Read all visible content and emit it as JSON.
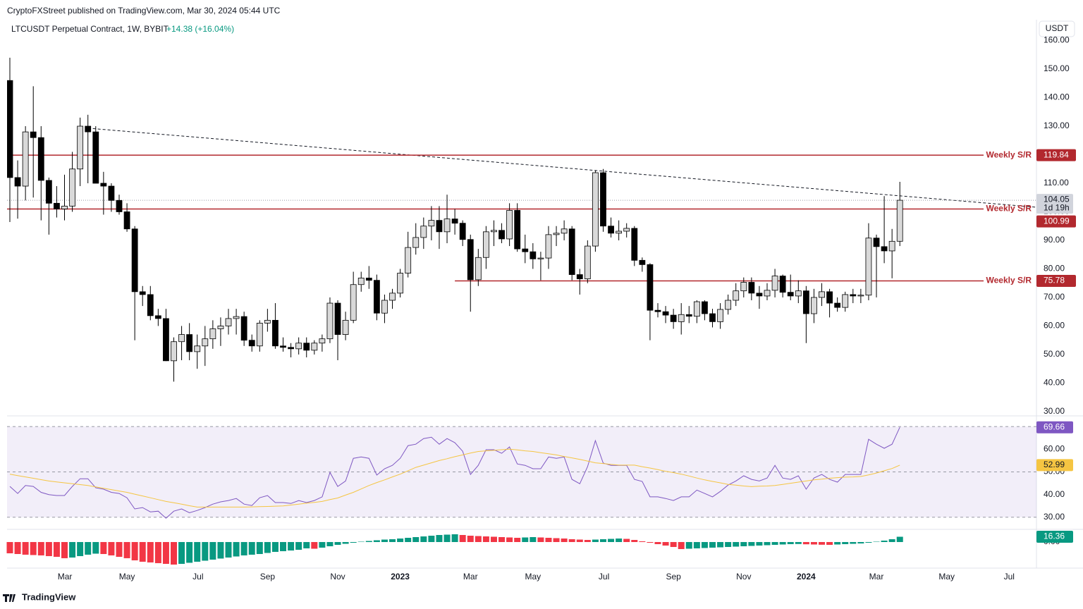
{
  "header": {
    "publisher": "CryptoFXStreet published on TradingView.com, Mar 30, 2024 05:44 UTC",
    "symbol": "LTCUSDT Perpetual Contract, 1W, BYBIT",
    "change": "+14.38 (+16.04%)",
    "currency": "USDT"
  },
  "footer": {
    "brand": "TradingView"
  },
  "chart_data": [
    {
      "type": "candlestick",
      "up_color": "#d9d9d9",
      "down_color": "#000000",
      "change_color": "#089981",
      "open": [
        146,
        112,
        109,
        128,
        126,
        111,
        103,
        101,
        102,
        115,
        130,
        128,
        110,
        109,
        104,
        100,
        94,
        72,
        71,
        63.6,
        62.6,
        47.8,
        54.5,
        57,
        51,
        53,
        55.5,
        59,
        60,
        62.6,
        63.3,
        55,
        53,
        61,
        62,
        53,
        52.5,
        52,
        54,
        51.5,
        54,
        55.5,
        68,
        57,
        62,
        74.5,
        76.8,
        76,
        64.5,
        69,
        71.5,
        78.5,
        87.5,
        91,
        95,
        97,
        93,
        97.5,
        96,
        90.3,
        76.2,
        84,
        93,
        93.5,
        90.5,
        100.5,
        87,
        86,
        83.5,
        83.8,
        92,
        92.5,
        94,
        78,
        76.5,
        88,
        113.7,
        95,
        92.5,
        93.2,
        94.2,
        83,
        81.5,
        65.5,
        65,
        63.8,
        61.5,
        64,
        63.4,
        68.5,
        64.3,
        61.5,
        65.8,
        69,
        72.3,
        75.3,
        71.5,
        70.5,
        72.5,
        77.5,
        71.8,
        70.5,
        72.3,
        64.3,
        70,
        72,
        68,
        66.5,
        71,
        70.5,
        70.8,
        90.8,
        87.8,
        86.3,
        89.67
      ],
      "high": [
        154,
        118,
        130,
        144,
        130,
        112,
        109,
        113,
        121,
        133,
        134,
        130,
        114,
        110,
        106,
        103,
        95,
        74,
        74,
        66,
        66,
        56,
        60,
        61,
        57,
        60,
        62,
        63,
        66,
        66,
        65,
        57,
        62,
        66,
        68,
        56,
        54,
        56,
        56,
        55,
        57,
        70,
        69,
        65,
        79,
        79,
        81,
        78,
        71,
        73,
        80,
        93,
        96,
        98,
        102,
        102,
        106,
        101,
        97,
        92,
        87,
        95,
        97,
        96,
        103,
        103,
        92,
        89,
        86,
        95,
        95,
        97,
        95,
        80,
        90,
        114.5,
        115,
        98,
        97,
        96,
        95,
        84,
        82,
        68,
        67,
        66,
        68,
        67,
        69,
        69,
        66,
        68,
        71,
        75,
        77,
        77,
        74,
        75,
        80,
        78,
        78,
        76,
        74,
        73,
        75,
        73,
        70,
        72,
        73,
        73,
        96,
        92,
        105.5,
        94,
        110.5
      ],
      "low": [
        96.4,
        97.6,
        104,
        105,
        97,
        92,
        98,
        97,
        100,
        109,
        110,
        110,
        99,
        100,
        99,
        93,
        55,
        67,
        62,
        60,
        47.7,
        40.5,
        48,
        48,
        45,
        46,
        52,
        53,
        57,
        57,
        53,
        51,
        51,
        58,
        52,
        51,
        49,
        50,
        49,
        50,
        51,
        54,
        48,
        55,
        61,
        72,
        73,
        62,
        61,
        66,
        70,
        77,
        85,
        87,
        90,
        87,
        89,
        92,
        88,
        65,
        74,
        80,
        88,
        89,
        88,
        86,
        82,
        80,
        76,
        80,
        88,
        90,
        76,
        71,
        75,
        86,
        93,
        91,
        90,
        91,
        81,
        79,
        55,
        63,
        61,
        59,
        57,
        61,
        61,
        62,
        59.5,
        59,
        64,
        67,
        70,
        69,
        66,
        69,
        70,
        70,
        69,
        68,
        54,
        61,
        67,
        63,
        65,
        65,
        68,
        68,
        69,
        70,
        82,
        76.7,
        88
      ],
      "close": [
        112,
        109,
        128,
        126,
        111,
        103,
        101,
        102,
        115,
        130,
        128,
        110,
        109,
        104,
        100,
        94,
        72,
        71,
        63.6,
        62.6,
        47.8,
        54.5,
        57,
        51,
        53,
        55.5,
        59,
        60,
        62.6,
        63.3,
        55,
        53,
        61,
        62,
        53,
        52.5,
        52,
        54,
        51.5,
        54,
        55.5,
        68,
        57,
        62,
        74.5,
        76.8,
        76,
        64.5,
        69,
        71.5,
        78.5,
        87.5,
        91,
        95,
        97,
        93,
        97.5,
        96,
        90.3,
        76.2,
        84,
        93,
        93.5,
        90.5,
        100.5,
        87,
        86,
        83.5,
        83.8,
        92,
        92.5,
        94,
        78,
        76.5,
        88,
        113.7,
        95,
        92.5,
        93.2,
        94.2,
        83,
        81.5,
        65.5,
        65,
        63.8,
        61.5,
        64,
        63.4,
        68.5,
        64.3,
        61.5,
        65.8,
        69,
        72.3,
        75.3,
        71.5,
        70.5,
        72.5,
        77.5,
        71.8,
        70.5,
        72.3,
        64.3,
        70,
        72,
        68,
        66.5,
        71,
        70.5,
        70.8,
        90.8,
        87.8,
        86.3,
        89.67,
        104.05
      ],
      "xlim": [
        -0.36,
        131.5
      ],
      "xticks": [
        {
          "value": 7.05,
          "label": "Mar"
        },
        {
          "value": 15,
          "label": "May"
        },
        {
          "value": 24.1,
          "label": "Jul"
        },
        {
          "value": 33,
          "label": "Sep"
        },
        {
          "value": 42,
          "label": "Nov"
        },
        {
          "value": 50,
          "label": "2023"
        },
        {
          "value": 59,
          "label": "Mar"
        },
        {
          "value": 67,
          "label": "May"
        },
        {
          "value": 76.1,
          "label": "Jul"
        },
        {
          "value": 85,
          "label": "Sep"
        },
        {
          "value": 94,
          "label": "Nov"
        },
        {
          "value": 102,
          "label": "2024"
        },
        {
          "value": 111,
          "label": "Mar"
        },
        {
          "value": 120,
          "label": "May"
        },
        {
          "value": 128,
          "label": "Jul"
        }
      ],
      "ylim": [
        28.5,
        166.8
      ],
      "yticks": [
        {
          "value": 30,
          "label": "30.00"
        },
        {
          "value": 40,
          "label": "40.00"
        },
        {
          "value": 50,
          "label": "50.00"
        },
        {
          "value": 60,
          "label": "60.00"
        },
        {
          "value": 70,
          "label": "70.00"
        },
        {
          "value": 80,
          "label": "80.00"
        },
        {
          "value": 90,
          "label": "90.00"
        },
        {
          "value": 100,
          "label": "100.00"
        },
        {
          "value": 110,
          "label": "110.00"
        },
        {
          "value": 120,
          "label": "120.00"
        },
        {
          "value": 130,
          "label": "130.00"
        },
        {
          "value": 140,
          "label": "140.00"
        },
        {
          "value": 150,
          "label": "150.00"
        },
        {
          "value": 160,
          "label": "160.00"
        }
      ],
      "level_color": "#b2282e",
      "levels": [
        {
          "value": 119.84,
          "label": "Weekly S/R"
        },
        {
          "value": 100.99,
          "label": "Weekly S/R"
        },
        {
          "value": 75.78,
          "label": "Weekly S/R",
          "from": 57
        }
      ],
      "trendline": {
        "x": [
          10,
          131.5
        ],
        "y": [
          129.3,
          101.6
        ]
      },
      "countdown": "1d 19h"
    },
    {
      "type": "line",
      "series": [
        {
          "color": "#7e57c2",
          "values": [
            43.6,
            40.5,
            44,
            43.6,
            41,
            40,
            39.6,
            39.6,
            43.6,
            47,
            47,
            43,
            42.4,
            41,
            40.5,
            38.6,
            33.7,
            34.3,
            32.4,
            32.7,
            29.6,
            32.7,
            33.7,
            32,
            33,
            34.3,
            35.8,
            36.8,
            37.4,
            38.3,
            35.8,
            35.2,
            38.6,
            39.6,
            36.5,
            36.5,
            36.1,
            37.4,
            36.5,
            37.4,
            39,
            49.8,
            43.6,
            46,
            56,
            56.6,
            56,
            48.6,
            51.4,
            52.9,
            56,
            61.6,
            62.2,
            64.7,
            65.3,
            62.2,
            64.7,
            62.9,
            59.1,
            48.9,
            52.9,
            59.8,
            59.8,
            58.2,
            61,
            53.5,
            52.9,
            51.4,
            51.4,
            56.6,
            56,
            56.6,
            46.7,
            44.8,
            52.3,
            63.8,
            53.9,
            52.9,
            52.9,
            52.9,
            46.7,
            45.8,
            39,
            39,
            38.3,
            37.4,
            39,
            39,
            42,
            40.5,
            39,
            41.4,
            44.2,
            46,
            48.3,
            46.7,
            46,
            47.3,
            52.9,
            47.3,
            46.7,
            48.3,
            42.4,
            47.3,
            48.9,
            46.7,
            45.5,
            48.9,
            48.9,
            48.9,
            64.4,
            62.2,
            60.4,
            62.2,
            69.66
          ]
        },
        {
          "color": "#f5c542",
          "values": [
            49,
            48.4,
            47.8,
            47.2,
            46.6,
            46,
            45.6,
            45.2,
            44.8,
            44.4,
            44,
            43.4,
            42.8,
            42.2,
            41.6,
            41,
            40.2,
            39.4,
            38.6,
            37.8,
            37,
            36.4,
            35.8,
            35.1,
            34.5,
            34.5,
            34.5,
            34.5,
            34.5,
            34.5,
            34.5,
            34.6,
            34.7,
            34.8,
            34.9,
            35,
            35.4,
            35.8,
            36.2,
            36.6,
            37,
            37.8,
            38.5,
            39.8,
            41,
            42.5,
            44,
            45.3,
            46.5,
            47.8,
            49,
            50.5,
            52,
            53,
            54,
            55,
            55.8,
            56.7,
            57.5,
            58.3,
            59,
            59.3,
            59.5,
            59.8,
            60,
            59.7,
            59.3,
            59,
            58.5,
            58,
            57.5,
            56.8,
            56.2,
            55.5,
            54.8,
            54,
            53.7,
            53.3,
            53,
            53,
            53,
            52.3,
            51.7,
            51,
            50.3,
            49.7,
            49,
            48.2,
            47.3,
            46.5,
            45.8,
            45.2,
            44.5,
            44.2,
            43.8,
            43.5,
            43.7,
            43.8,
            44,
            44.5,
            45,
            45.5,
            46,
            46.5,
            46.8,
            47.2,
            47.5,
            47.7,
            47.8,
            48,
            48.7,
            49.5,
            50.5,
            51.5,
            52.99
          ]
        }
      ],
      "ylim": [
        25,
        74.7
      ],
      "yticks": [
        {
          "value": 30,
          "label": "30.00"
        },
        {
          "value": 40,
          "label": "40.00"
        },
        {
          "value": 50,
          "label": "50.00"
        },
        {
          "value": 60,
          "label": "60.00"
        },
        {
          "value": 70,
          "label": "70.00"
        }
      ],
      "band": [
        30,
        70
      ],
      "guides": [
        70,
        50,
        30
      ],
      "band_color": "#7e57c2"
    },
    {
      "type": "bar",
      "rising_color": "#089981",
      "falling_color": "#f23645",
      "values": [
        -34.9,
        -37.1,
        -39.2,
        -40.3,
        -41.4,
        -43.6,
        -45.8,
        -50.1,
        -48,
        -43.6,
        -39.2,
        -36,
        -37.1,
        -41.4,
        -45.8,
        -50.1,
        -56.7,
        -61,
        -63.2,
        -65.4,
        -67.6,
        -69.8,
        -67.6,
        -64.3,
        -61,
        -57.8,
        -54.5,
        -51.2,
        -48,
        -44.7,
        -41.4,
        -39.2,
        -37.1,
        -33.8,
        -30.5,
        -28.3,
        -26.2,
        -24,
        -19.6,
        -20.7,
        -17.4,
        -13.1,
        -8.7,
        -5.5,
        -2.2,
        1.1,
        3.3,
        5.5,
        7.6,
        8.7,
        10.9,
        13.1,
        15.3,
        17.4,
        19.6,
        21.8,
        22.9,
        24,
        21.8,
        19.6,
        18.5,
        17.4,
        16.4,
        15.3,
        14.2,
        13.1,
        14.2,
        15.3,
        14.2,
        13.1,
        12,
        10.9,
        8.7,
        7.6,
        6.5,
        7.6,
        8.7,
        9.8,
        10.9,
        9.8,
        6.5,
        2.2,
        -2.2,
        -6.5,
        -10.9,
        -15.3,
        -21.8,
        -20.7,
        -19.6,
        -18.5,
        -17.4,
        -16.4,
        -15.3,
        -14.2,
        -13.1,
        -12,
        -10.9,
        -9.8,
        -8.7,
        -7.6,
        -6.5,
        -6.1,
        -7,
        -7.6,
        -8.3,
        -8.7,
        -7.6,
        -6.5,
        -5.5,
        -4.4,
        -2.2,
        1.1,
        4.4,
        8.7,
        16.36
      ],
      "ylim": [
        -78.6,
        37.1
      ],
      "yticks": [
        {
          "value": 0,
          "label": "0.00"
        }
      ]
    }
  ]
}
